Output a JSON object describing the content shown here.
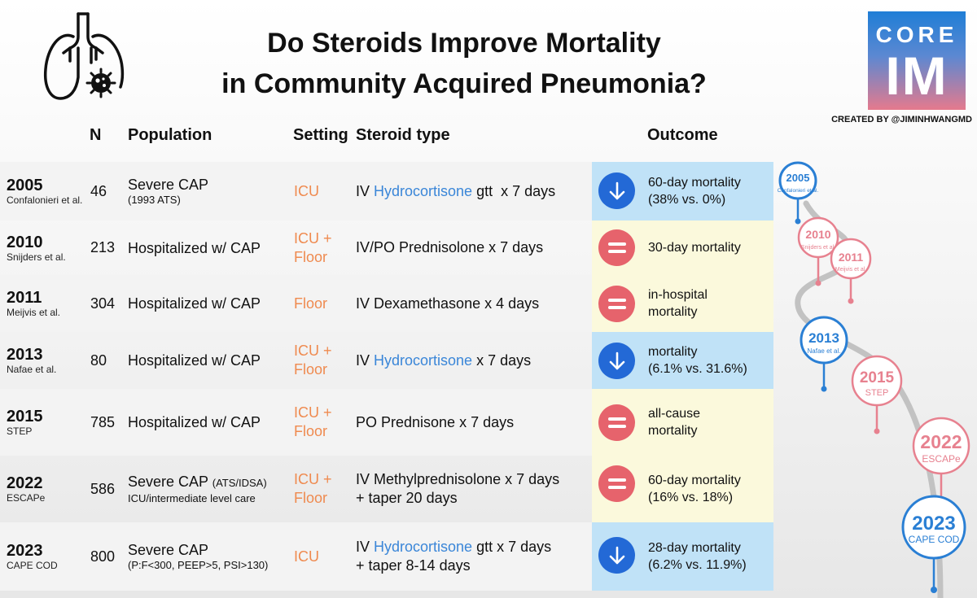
{
  "title": {
    "line1": "Do Steroids Improve Mortality",
    "line2": "in Community Acquired Pneumonia?"
  },
  "logo": {
    "line1": "CORE",
    "line2": "IM"
  },
  "credit": "CREATED BY @JIMINHWANGMD",
  "headers": {
    "n": "N",
    "population": "Population",
    "setting": "Setting",
    "steroid": "Steroid type",
    "outcome": "Outcome"
  },
  "rows": [
    {
      "year": "2005",
      "author": "Confalonieri et al.",
      "n": "46",
      "population": "Severe CAP",
      "population_inline": "",
      "population_sub": "(1993 ATS)",
      "setting_1": "ICU",
      "setting_2": "",
      "steroid_pre": "IV ",
      "steroid_drug": "Hydrocortisone",
      "steroid_post": " gtt  x 7 days",
      "steroid_line2": "",
      "result": "decreased",
      "outcome_1": "60-day mortality",
      "outcome_2": "(38% vs. 0%)"
    },
    {
      "year": "2010",
      "author": "Snijders et al.",
      "n": "213",
      "population": "Hospitalized w/ CAP",
      "population_inline": "",
      "population_sub": "",
      "setting_1": "ICU +",
      "setting_2": "Floor",
      "steroid_pre": "IV/PO Prednisolone x 7 days",
      "steroid_drug": "",
      "steroid_post": "",
      "steroid_line2": "",
      "result": "no difference",
      "outcome_1": "30-day mortality",
      "outcome_2": ""
    },
    {
      "year": "2011",
      "author": "Meijvis et al.",
      "n": "304",
      "population": "Hospitalized w/ CAP",
      "population_inline": "",
      "population_sub": "",
      "setting_1": "Floor",
      "setting_2": "",
      "steroid_pre": "IV Dexamethasone x 4 days",
      "steroid_drug": "",
      "steroid_post": "",
      "steroid_line2": "",
      "result": "no difference",
      "outcome_1": "in-hospital",
      "outcome_2": "mortality"
    },
    {
      "year": "2013",
      "author": "Nafae et al.",
      "n": "80",
      "population": "Hospitalized w/ CAP",
      "population_inline": "",
      "population_sub": "",
      "setting_1": "ICU +",
      "setting_2": "Floor",
      "steroid_pre": "IV ",
      "steroid_drug": "Hydrocortisone",
      "steroid_post": " x 7 days",
      "steroid_line2": "",
      "result": "decreased",
      "outcome_1": "mortality",
      "outcome_2": "(6.1% vs. 31.6%)"
    },
    {
      "year": "2015",
      "author": "STEP",
      "n": "785",
      "population": "Hospitalized w/ CAP",
      "population_inline": "",
      "population_sub": "",
      "setting_1": "ICU +",
      "setting_2": "Floor",
      "steroid_pre": "PO Prednisone x 7 days",
      "steroid_drug": "",
      "steroid_post": "",
      "steroid_line2": "",
      "result": "no difference",
      "outcome_1": "all-cause",
      "outcome_2": "mortality"
    },
    {
      "year": "2022",
      "author": "ESCAPe",
      "n": "586",
      "population": "Severe CAP",
      "population_inline": "(ATS/IDSA)",
      "population_sub": "ICU/intermediate level care",
      "setting_1": "ICU +",
      "setting_2": "Floor",
      "steroid_pre": "IV Methylprednisolone x 7 days",
      "steroid_drug": "",
      "steroid_post": "",
      "steroid_line2": "+ taper 20 days",
      "result": "no difference",
      "outcome_1": "60-day mortality",
      "outcome_2": "(16% vs. 18%)"
    },
    {
      "year": "2023",
      "author": "CAPE COD",
      "n": "800",
      "population": "Severe CAP",
      "population_inline": "",
      "population_sub": "(P:F<300, PEEP>5, PSI>130)",
      "setting_1": "ICU",
      "setting_2": "",
      "steroid_pre": "IV ",
      "steroid_drug": "Hydrocortisone",
      "steroid_post": " gtt x 7 days",
      "steroid_line2": "+ taper 8-14 days",
      "result": "decreased",
      "outcome_1": "28-day mortality",
      "outcome_2": "(6.2% vs. 11.9%)"
    }
  ],
  "timeline": [
    {
      "year": "2005",
      "label": "Confalonieri et al.",
      "color": "#2a7fd4"
    },
    {
      "year": "2010",
      "label": "Snijders et al.",
      "color": "#e7818f"
    },
    {
      "year": "2011",
      "label": "Meijvis et al.",
      "color": "#e7818f"
    },
    {
      "year": "2013",
      "label": "Nafae et al.",
      "color": "#2a7fd4"
    },
    {
      "year": "2015",
      "label": "STEP",
      "color": "#e7818f"
    },
    {
      "year": "2022",
      "label": "ESCAPe",
      "color": "#e7818f"
    },
    {
      "year": "2023",
      "label": "CAPE COD",
      "color": "#2a7fd4"
    }
  ],
  "colors": {
    "decreased_box": "#c0e2f7",
    "decreased_badge": "#2369d6",
    "equal_box": "#fbf9dc",
    "equal_badge": "#e6636c",
    "setting": "#ef8a4f",
    "drug": "#3a86d8"
  },
  "icons": {
    "header": "lungs-virus-icon",
    "decreased": "down-arrow-icon",
    "no_difference": "equals-icon"
  }
}
